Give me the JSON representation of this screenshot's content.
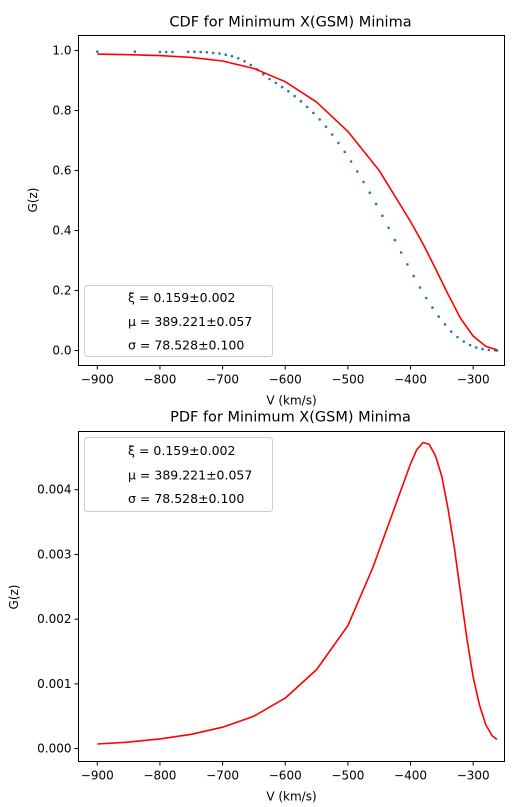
{
  "chart_data": [
    {
      "type": "line",
      "title": "CDF for Minimum X(GSM) Minima",
      "xlabel": "V (km/s)",
      "ylabel": "G(z)",
      "xlim": [
        -930,
        -250
      ],
      "ylim": [
        -0.05,
        1.05
      ],
      "xticks": [
        -900,
        -800,
        -700,
        -600,
        -500,
        -400,
        -300
      ],
      "xtick_labels": [
        "−900",
        "−800",
        "−700",
        "−600",
        "−500",
        "−400",
        "−300"
      ],
      "yticks": [
        0.0,
        0.2,
        0.4,
        0.6,
        0.8,
        1.0
      ],
      "ytick_labels": [
        "0.0",
        "0.2",
        "0.4",
        "0.6",
        "0.8",
        "1.0"
      ],
      "grid": false,
      "legend": {
        "placement": "lower-left",
        "entries": [
          "ξ = 0.159±0.002",
          "μ = 389.221±0.057",
          "σ = 78.528±0.100"
        ]
      },
      "series": [
        {
          "kind": "scatter",
          "color": "#1f77b4",
          "x": [
            -900,
            -840,
            -800,
            -790,
            -780,
            -755,
            -745,
            -735,
            -725,
            -715,
            -705,
            -695,
            -685,
            -675,
            -665,
            -655,
            -645,
            -635,
            -625,
            -615,
            -605,
            -595,
            -585,
            -575,
            -565,
            -555,
            -545,
            -535,
            -525,
            -515,
            -505,
            -495,
            -485,
            -475,
            -465,
            -455,
            -445,
            -435,
            -425,
            -415,
            -405,
            -395,
            -385,
            -375,
            -365,
            -355,
            -345,
            -335,
            -325,
            -315,
            -305,
            -295,
            -285,
            -275,
            -265,
            -262
          ],
          "y": [
            0.996,
            0.996,
            0.995,
            0.995,
            0.995,
            0.996,
            0.996,
            0.995,
            0.994,
            0.992,
            0.99,
            0.986,
            0.981,
            0.974,
            0.964,
            0.952,
            0.937,
            0.921,
            0.905,
            0.892,
            0.878,
            0.864,
            0.848,
            0.831,
            0.812,
            0.792,
            0.77,
            0.746,
            0.72,
            0.692,
            0.662,
            0.63,
            0.597,
            0.562,
            0.526,
            0.488,
            0.449,
            0.409,
            0.368,
            0.327,
            0.287,
            0.248,
            0.21,
            0.175,
            0.143,
            0.113,
            0.087,
            0.063,
            0.045,
            0.03,
            0.018,
            0.01,
            0.005,
            0.002,
            0.001,
            0.0
          ]
        },
        {
          "kind": "line",
          "color": "#ff0000",
          "x": [
            -900,
            -850,
            -800,
            -750,
            -700,
            -650,
            -600,
            -550,
            -500,
            -450,
            -400,
            -380,
            -360,
            -340,
            -320,
            -300,
            -280,
            -262
          ],
          "y": [
            0.988,
            0.986,
            0.983,
            0.977,
            0.965,
            0.94,
            0.896,
            0.828,
            0.73,
            0.6,
            0.43,
            0.355,
            0.272,
            0.187,
            0.107,
            0.048,
            0.014,
            0.002
          ]
        }
      ]
    },
    {
      "type": "line",
      "title": "PDF for Minimum X(GSM) Minima",
      "xlabel": "V (km/s)",
      "ylabel": "G(z)",
      "xlim": [
        -930,
        -250
      ],
      "ylim": [
        -0.0002,
        0.0049
      ],
      "xticks": [
        -900,
        -800,
        -700,
        -600,
        -500,
        -400,
        -300
      ],
      "xtick_labels": [
        "−900",
        "−800",
        "−700",
        "−600",
        "−500",
        "−400",
        "−300"
      ],
      "yticks": [
        0.0,
        0.001,
        0.002,
        0.003,
        0.004
      ],
      "ytick_labels": [
        "0.000",
        "0.001",
        "0.002",
        "0.003",
        "0.004"
      ],
      "grid": false,
      "legend": {
        "placement": "upper-left",
        "entries": [
          "ξ = 0.159±0.002",
          "μ = 389.221±0.057",
          "σ = 78.528±0.100"
        ]
      },
      "series": [
        {
          "kind": "line",
          "color": "#ff0000",
          "x": [
            -900,
            -850,
            -800,
            -750,
            -700,
            -650,
            -600,
            -550,
            -500,
            -460,
            -430,
            -400,
            -390,
            -380,
            -370,
            -360,
            -350,
            -340,
            -330,
            -320,
            -310,
            -300,
            -290,
            -280,
            -270,
            -262
          ],
          "y": [
            7e-05,
            0.0001,
            0.00015,
            0.00022,
            0.00033,
            0.0005,
            0.00078,
            0.00122,
            0.0019,
            0.0028,
            0.0036,
            0.0044,
            0.00462,
            0.00473,
            0.0047,
            0.00452,
            0.0042,
            0.0037,
            0.0031,
            0.0024,
            0.0017,
            0.0011,
            0.00068,
            0.00037,
            0.0002,
            0.00014
          ]
        }
      ]
    }
  ]
}
